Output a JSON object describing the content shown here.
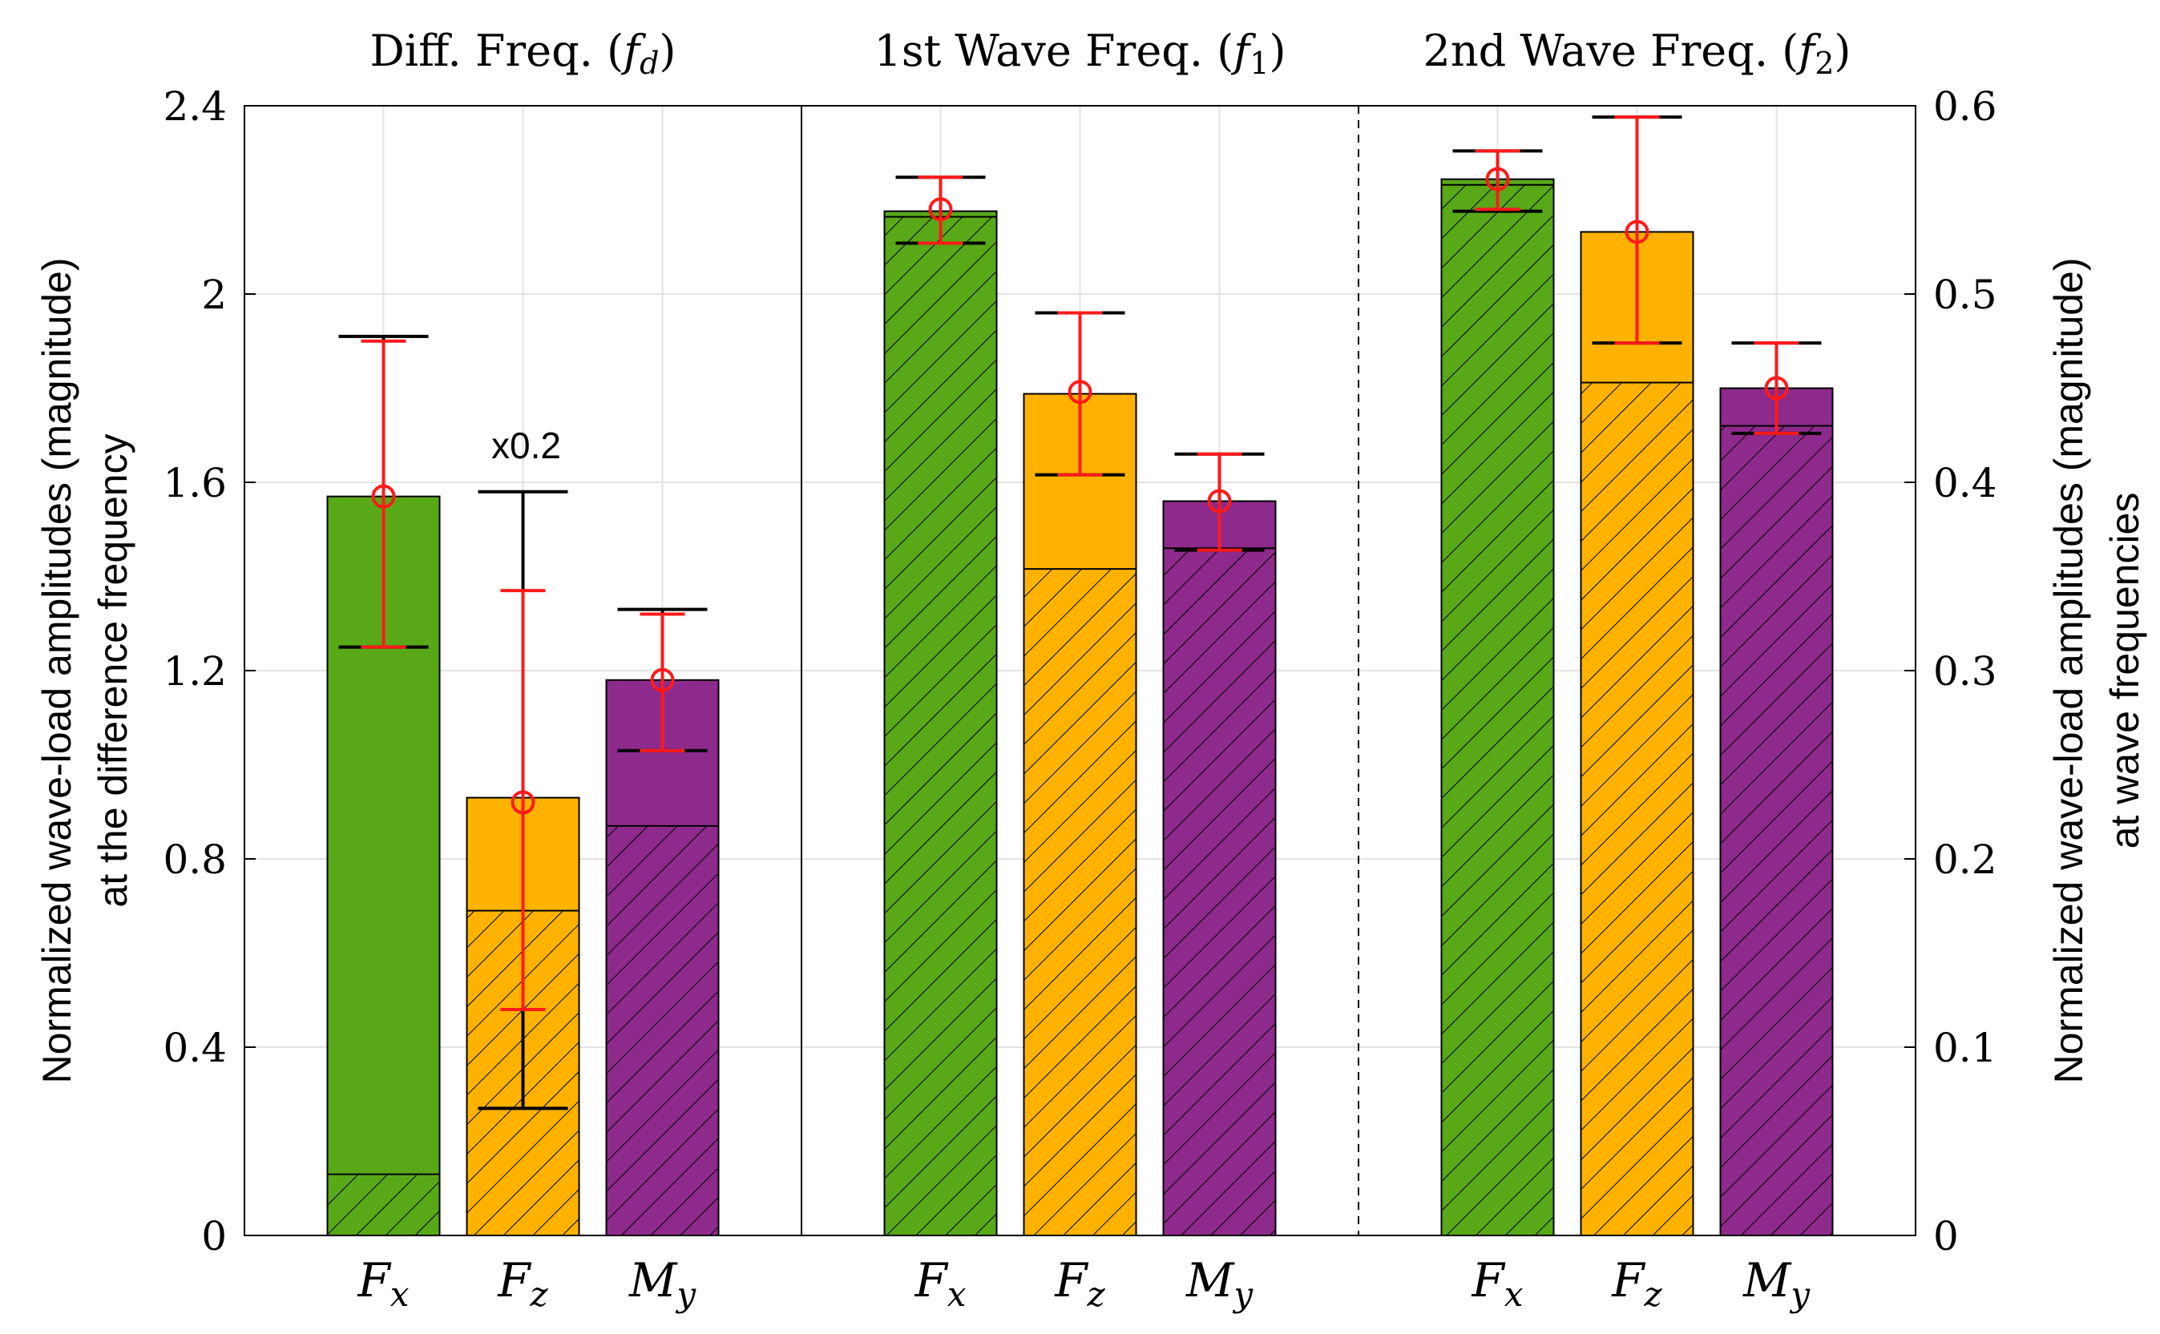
{
  "chart_data": {
    "type": "bar",
    "stacked_bars_with_error_bars": true,
    "colors": {
      "Fx": "#58A818",
      "Fz": "#FFB300",
      "My": "#8E2A8C",
      "error_red": "#FF1A1A",
      "error_black": "#000000"
    },
    "left_axis": {
      "label_line1": "Normalized wave-load amplitudes (magnitude)",
      "label_line2": "at the difference frequency",
      "ylim": [
        0,
        2.4
      ],
      "ticks": [
        "0",
        "0.4",
        "0.8",
        "1.2",
        "1.6",
        "2",
        "2.4"
      ]
    },
    "right_axis": {
      "label_line1": "Normalized wave-load amplitudes (magnitude)",
      "label_line2": "at wave frequencies",
      "ylim": [
        0,
        0.6
      ],
      "ticks": [
        "0",
        "0.1",
        "0.2",
        "0.3",
        "0.4",
        "0.5",
        "0.6"
      ]
    },
    "groups": [
      {
        "title_text": "Diff. Freq. (",
        "title_var": "f",
        "title_sub": "d",
        "title_close": ")",
        "axis": "left",
        "bars": [
          {
            "var": "F",
            "sub": "x",
            "key": "Fx",
            "total": 1.57,
            "hatched": 0.13,
            "red_mean": 1.57,
            "red_low": 1.25,
            "red_high": 1.9,
            "black_low": 1.25,
            "black_high": 1.91
          },
          {
            "var": "F",
            "sub": "z",
            "key": "Fz",
            "total": 0.93,
            "hatched": 0.69,
            "red_mean": 0.92,
            "red_low": 0.48,
            "red_high": 1.37,
            "black_low": 0.27,
            "black_high": 1.58,
            "annotation": "x0.2"
          },
          {
            "var": "M",
            "sub": "y",
            "key": "My",
            "total": 1.18,
            "hatched": 0.87,
            "red_mean": 1.18,
            "red_low": 1.03,
            "red_high": 1.32,
            "black_low": 1.03,
            "black_high": 1.33
          }
        ]
      },
      {
        "title_text": "1st Wave Freq. (",
        "title_var": "f",
        "title_sub": "1",
        "title_close": ")",
        "axis": "right",
        "bars": [
          {
            "var": "F",
            "sub": "x",
            "key": "Fx",
            "total": 0.544,
            "hatched": 0.541,
            "red_mean": 0.545,
            "red_low": 0.527,
            "red_high": 0.562,
            "black_low": 0.527,
            "black_high": 0.562
          },
          {
            "var": "F",
            "sub": "z",
            "key": "Fz",
            "total": 0.447,
            "hatched": 0.354,
            "red_mean": 0.448,
            "red_low": 0.404,
            "red_high": 0.49,
            "black_low": 0.404,
            "black_high": 0.49
          },
          {
            "var": "M",
            "sub": "y",
            "key": "My",
            "total": 0.39,
            "hatched": 0.365,
            "red_mean": 0.39,
            "red_low": 0.364,
            "red_high": 0.415,
            "black_low": 0.364,
            "black_high": 0.415
          }
        ]
      },
      {
        "title_text": "2nd Wave Freq. (",
        "title_var": "f",
        "title_sub": "2",
        "title_close": ")",
        "axis": "right",
        "bars": [
          {
            "var": "F",
            "sub": "x",
            "key": "Fx",
            "total": 0.561,
            "hatched": 0.558,
            "red_mean": 0.561,
            "red_low": 0.545,
            "red_high": 0.576,
            "black_low": 0.544,
            "black_high": 0.576
          },
          {
            "var": "F",
            "sub": "z",
            "key": "Fz",
            "total": 0.533,
            "hatched": 0.453,
            "red_mean": 0.533,
            "red_low": 0.474,
            "red_high": 0.594,
            "black_low": 0.474,
            "black_high": 0.594
          },
          {
            "var": "M",
            "sub": "y",
            "key": "My",
            "total": 0.45,
            "hatched": 0.43,
            "red_mean": 0.45,
            "red_low": 0.426,
            "red_high": 0.474,
            "black_low": 0.426,
            "black_high": 0.474
          }
        ]
      }
    ],
    "grid": true
  }
}
